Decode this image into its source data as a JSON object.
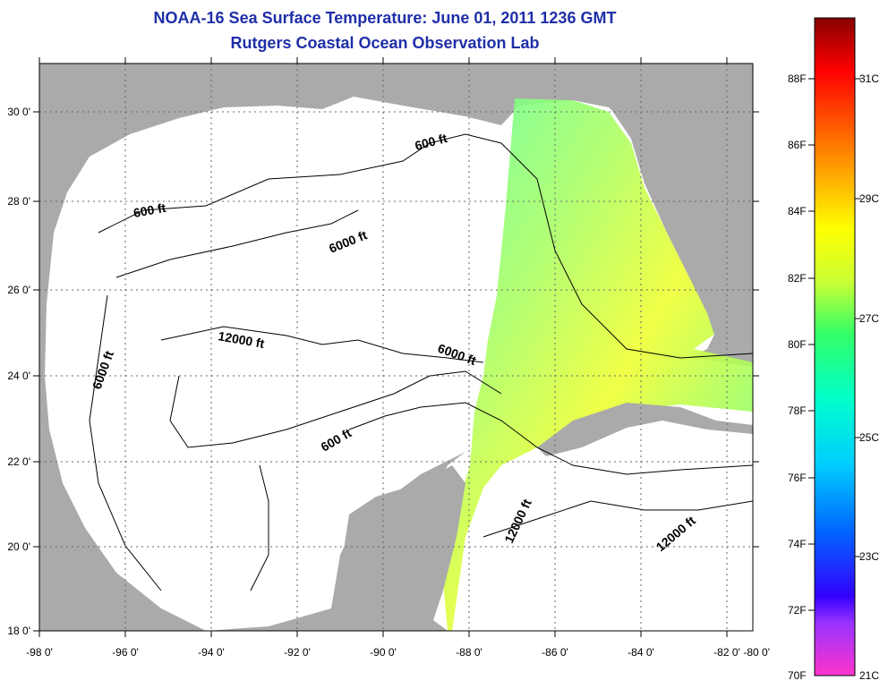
{
  "title_line1": "NOAA-16 Sea Surface Temperature:  June 01, 2011 1236 GMT",
  "title_line2": "Rutgers Coastal Ocean Observation Lab",
  "lon_ticks": [
    "-98 0'",
    "-96 0'",
    "-94 0'",
    "-92 0'",
    "-90 0'",
    "-88 0'",
    "-86 0'",
    "-84 0'",
    "-82 0'",
    "-80 0'"
  ],
  "lat_ticks": [
    "30 0'",
    "28 0'",
    "26 0'",
    "24 0'",
    "22 0'",
    "20 0'",
    "18 0'"
  ],
  "contours": [
    "600 ft",
    "600 ft",
    "600 ft",
    "6000 ft",
    "6000 ft",
    "6000 ft",
    "12000 ft",
    "12000 ft",
    "12000 ft"
  ],
  "colorbar": {
    "f_labels": [
      "88F",
      "86F",
      "84F",
      "82F",
      "80F",
      "78F",
      "76F",
      "74F",
      "72F",
      "70F"
    ],
    "c_labels": [
      "31C",
      "29C",
      "27C",
      "25C",
      "23C",
      "21C"
    ]
  },
  "colors": {
    "land": "#aaaaaa",
    "sea_no_data": "#ffffff",
    "title": "#1f2fa8"
  }
}
